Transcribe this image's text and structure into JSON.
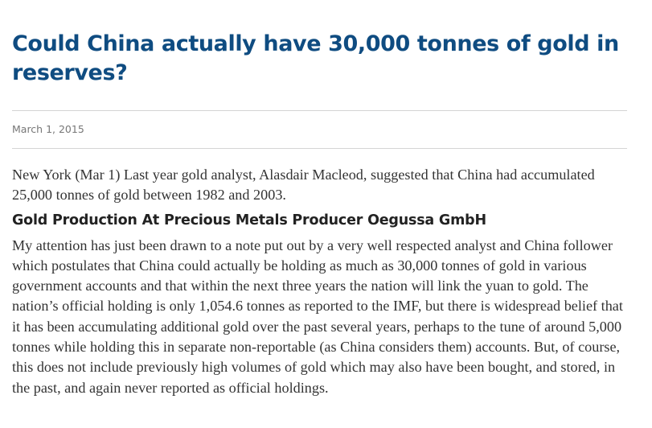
{
  "article": {
    "title": "Could China actually have 30,000 tonnes of gold in reserves?",
    "date": "March 1, 2015",
    "intro": "New York (Mar 1)  Last year gold analyst, Alasdair Macleod, suggested that China had accumulated 25,000 tonnes of gold between 1982 and 2003.",
    "subheading": "Gold Production At Precious Metals Producer Oegussa GmbH",
    "body": "My attention has just been drawn to a note put out by a very well respected analyst and China follower which postulates that China could actually be holding as much as 30,000 tonnes of gold in various government accounts and that within the next three years the nation will link the yuan to gold. The nation’s official holding is only 1,054.6 tonnes as reported to the IMF, but there is widespread belief that it has been accumulating additional gold over the past several years, perhaps to the tune of around 5,000 tonnes while holding this in separate non-reportable (as China considers them) accounts. But, of course, this does not include previously high volumes of gold which may also have been bought, and stored, in the past, and again never reported as official holdings."
  }
}
